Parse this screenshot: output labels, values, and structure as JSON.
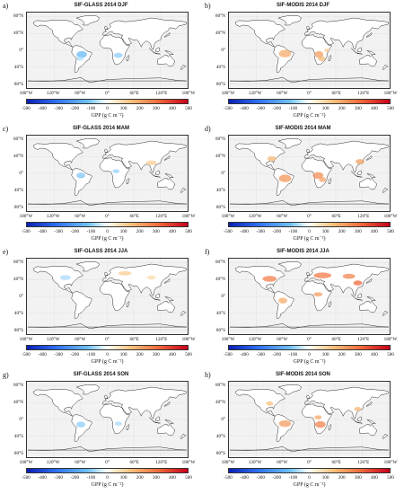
{
  "figure": {
    "panels": [
      {
        "label": "a)",
        "title": "SIF-GLASS 2014 DJF",
        "season": "DJF",
        "product": "SIF-GLASS"
      },
      {
        "label": "b)",
        "title": "SIF-MODIS 2014 DJF",
        "season": "DJF",
        "product": "SIF-MODIS"
      },
      {
        "label": "c)",
        "title": "SIF-GLASS 2014 MAM",
        "season": "MAM",
        "product": "SIF-GLASS"
      },
      {
        "label": "d)",
        "title": "SIF-MODIS 2014 MAM",
        "season": "MAM",
        "product": "SIF-MODIS"
      },
      {
        "label": "e)",
        "title": "SIF-GLASS 2014 JJA",
        "season": "JJA",
        "product": "SIF-GLASS"
      },
      {
        "label": "f)",
        "title": "SIF-MODIS 2014 JJA",
        "season": "JJA",
        "product": "SIF-MODIS"
      },
      {
        "label": "g)",
        "title": "SIF-GLASS 2014 SON",
        "season": "SON",
        "product": "SIF-GLASS"
      },
      {
        "label": "h)",
        "title": "SIF-MODIS 2014 SON",
        "season": "SON",
        "product": "SIF-MODIS"
      }
    ],
    "lat_ticks": [
      "80°N",
      "40°N",
      "0°",
      "40°S",
      "80°S"
    ],
    "lon_ticks": [
      "180°W",
      "120°W",
      "60°W",
      "0°",
      "60°E",
      "120°E",
      "180°W"
    ],
    "colorbar": {
      "ticks": [
        "-500",
        "-400",
        "-300",
        "-200",
        "-100",
        "0",
        "100",
        "200",
        "300",
        "400",
        "500"
      ],
      "unit_label": "GPP (g C m⁻²)",
      "colors": [
        "#0b1fb5",
        "#2d6ff0",
        "#6fc0f5",
        "#ffffff",
        "#f7c07a",
        "#f06a3c",
        "#c8001a"
      ]
    }
  }
}
